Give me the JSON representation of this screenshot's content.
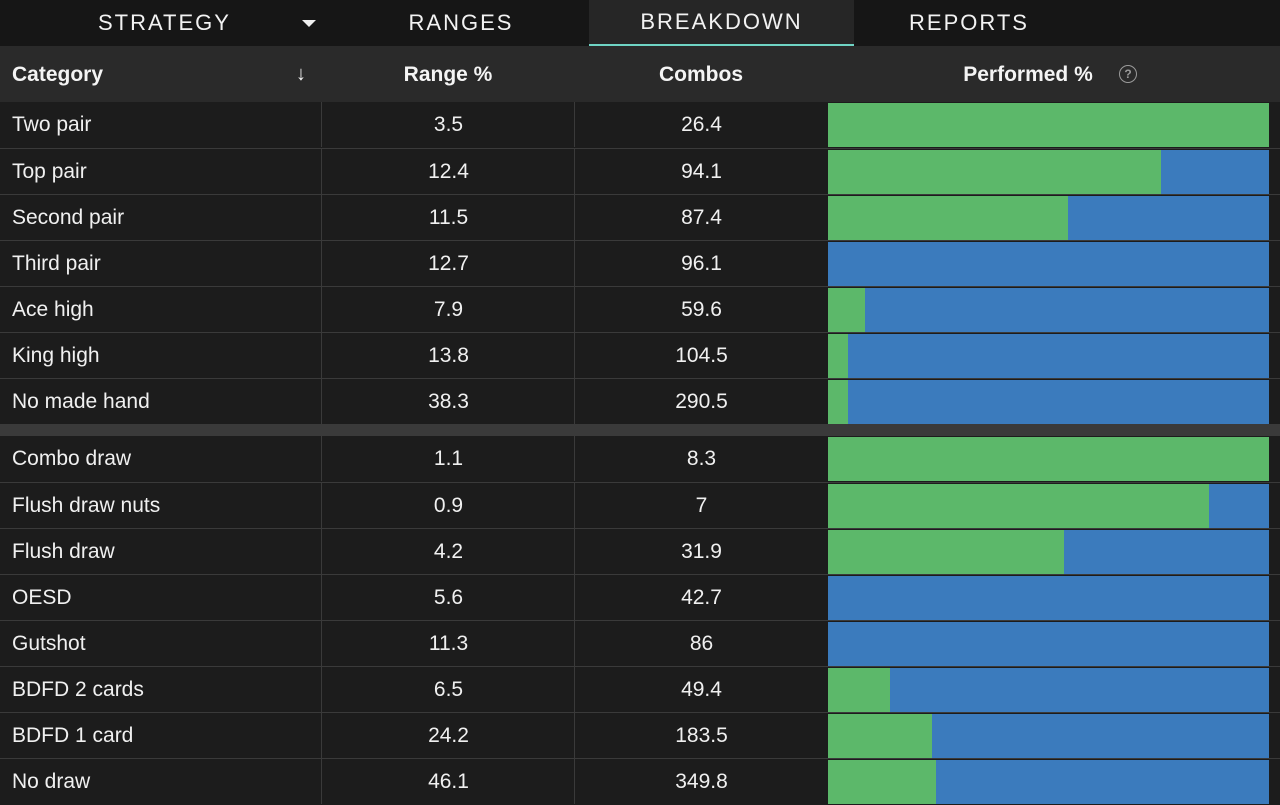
{
  "tabs": {
    "strategy": "STRATEGY",
    "ranges": "RANGES",
    "breakdown": "BREAKDOWN",
    "reports": "REPORTS",
    "active": "BREAKDOWN"
  },
  "header": {
    "category": "Category",
    "sort_icon": "↓",
    "range": "Range %",
    "combos": "Combos",
    "performed": "Performed %",
    "help_icon": "?"
  },
  "colors": {
    "green": "#5cb86a",
    "blue": "#3b7bbd",
    "accent": "#6fd3c4"
  },
  "made_hands": [
    {
      "category": "Two pair",
      "range": "3.5",
      "combos": "26.4",
      "green_pct": 100
    },
    {
      "category": "Top pair",
      "range": "12.4",
      "combos": "94.1",
      "green_pct": 75.5
    },
    {
      "category": "Second pair",
      "range": "11.5",
      "combos": "87.4",
      "green_pct": 54.5
    },
    {
      "category": "Third pair",
      "range": "12.7",
      "combos": "96.1",
      "green_pct": 0
    },
    {
      "category": "Ace high",
      "range": "7.9",
      "combos": "59.6",
      "green_pct": 8.5
    },
    {
      "category": "King high",
      "range": "13.8",
      "combos": "104.5",
      "green_pct": 4.5
    },
    {
      "category": "No made hand",
      "range": "38.3",
      "combos": "290.5",
      "green_pct": 4.5
    }
  ],
  "draws": [
    {
      "category": "Combo draw",
      "range": "1.1",
      "combos": "8.3",
      "green_pct": 100
    },
    {
      "category": "Flush draw nuts",
      "range": "0.9",
      "combos": "7",
      "green_pct": 86.5
    },
    {
      "category": "Flush draw",
      "range": "4.2",
      "combos": "31.9",
      "green_pct": 53.5
    },
    {
      "category": "OESD",
      "range": "5.6",
      "combos": "42.7",
      "green_pct": 0
    },
    {
      "category": "Gutshot",
      "range": "11.3",
      "combos": "86",
      "green_pct": 0
    },
    {
      "category": "BDFD 2 cards",
      "range": "6.5",
      "combos": "49.4",
      "green_pct": 14
    },
    {
      "category": "BDFD 1 card",
      "range": "24.2",
      "combos": "183.5",
      "green_pct": 23.5
    },
    {
      "category": "No draw",
      "range": "46.1",
      "combos": "349.8",
      "green_pct": 24.5
    }
  ]
}
